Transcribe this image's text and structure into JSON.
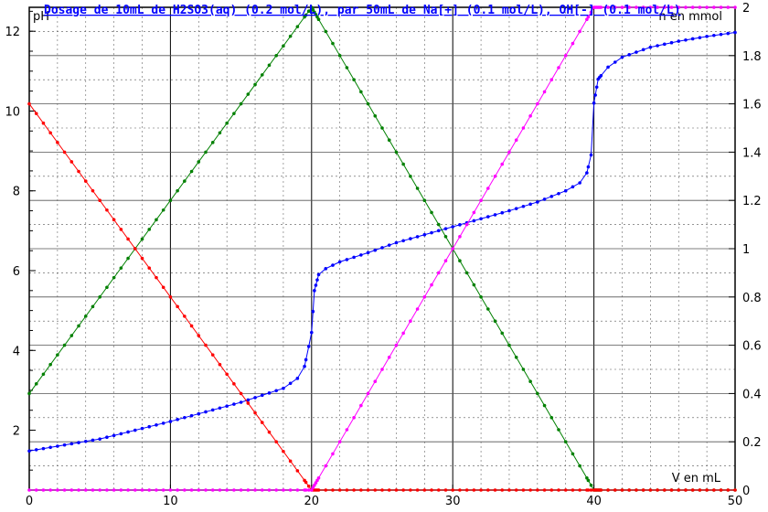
{
  "chart_data": {
    "type": "line",
    "title": "Dosage de 10mL de H2SO3(aq) (0.2 mol/L),  par 50mL  de Na[+] (0.1 mol/L), OH[-] (0.1 mol/L)",
    "xlabel": "V en mL",
    "ylabel_left": "pH",
    "ylabel_right": "n en mmol",
    "xlim": [
      0,
      50
    ],
    "ylim_left": [
      0.5,
      12.6
    ],
    "ylim_right": [
      0,
      2.0
    ],
    "grid": true,
    "x_ticks": [
      "0",
      "10",
      "20",
      "30",
      "40",
      "50"
    ],
    "y_left_ticks": [
      "2",
      "4",
      "6",
      "8",
      "10",
      "12"
    ],
    "y_right_ticks": [
      "0",
      "0.2",
      "0.4",
      "0.6",
      "0.8",
      "1",
      "1.2",
      "1.4",
      "1.6",
      "1.8",
      "2"
    ],
    "series": [
      {
        "axis": "left",
        "color": "#0000ff",
        "points": [
          [
            0,
            1.48
          ],
          [
            5,
            1.78
          ],
          [
            10,
            2.22
          ],
          [
            15,
            2.7
          ],
          [
            18,
            3.05
          ],
          [
            19,
            3.3
          ],
          [
            19.5,
            3.6
          ],
          [
            19.8,
            4.1
          ],
          [
            20,
            4.45
          ],
          [
            20.2,
            5.5
          ],
          [
            20.5,
            5.9
          ],
          [
            21,
            6.05
          ],
          [
            22,
            6.22
          ],
          [
            24,
            6.45
          ],
          [
            26,
            6.7
          ],
          [
            28,
            6.9
          ],
          [
            30,
            7.1
          ],
          [
            32,
            7.3
          ],
          [
            34,
            7.5
          ],
          [
            36,
            7.72
          ],
          [
            38,
            8.0
          ],
          [
            39,
            8.2
          ],
          [
            39.5,
            8.45
          ],
          [
            39.8,
            8.9
          ],
          [
            40,
            10.2
          ],
          [
            40.3,
            10.8
          ],
          [
            41,
            11.1
          ],
          [
            42,
            11.35
          ],
          [
            44,
            11.6
          ],
          [
            46,
            11.75
          ],
          [
            48,
            11.87
          ],
          [
            50,
            11.97
          ]
        ]
      },
      {
        "axis": "right",
        "color": "#008000",
        "points": [
          [
            0,
            0.4
          ],
          [
            20,
            2.0
          ],
          [
            40,
            0.0
          ],
          [
            50,
            0.0
          ]
        ]
      },
      {
        "axis": "right",
        "color": "#ff0000",
        "points": [
          [
            0,
            1.6
          ],
          [
            20,
            0.0
          ],
          [
            50,
            0.0
          ]
        ]
      },
      {
        "axis": "right",
        "color": "#ff00ff",
        "points": [
          [
            0,
            0.0
          ],
          [
            20,
            0.0
          ],
          [
            40,
            2.0
          ],
          [
            50,
            2.0
          ]
        ]
      }
    ]
  }
}
